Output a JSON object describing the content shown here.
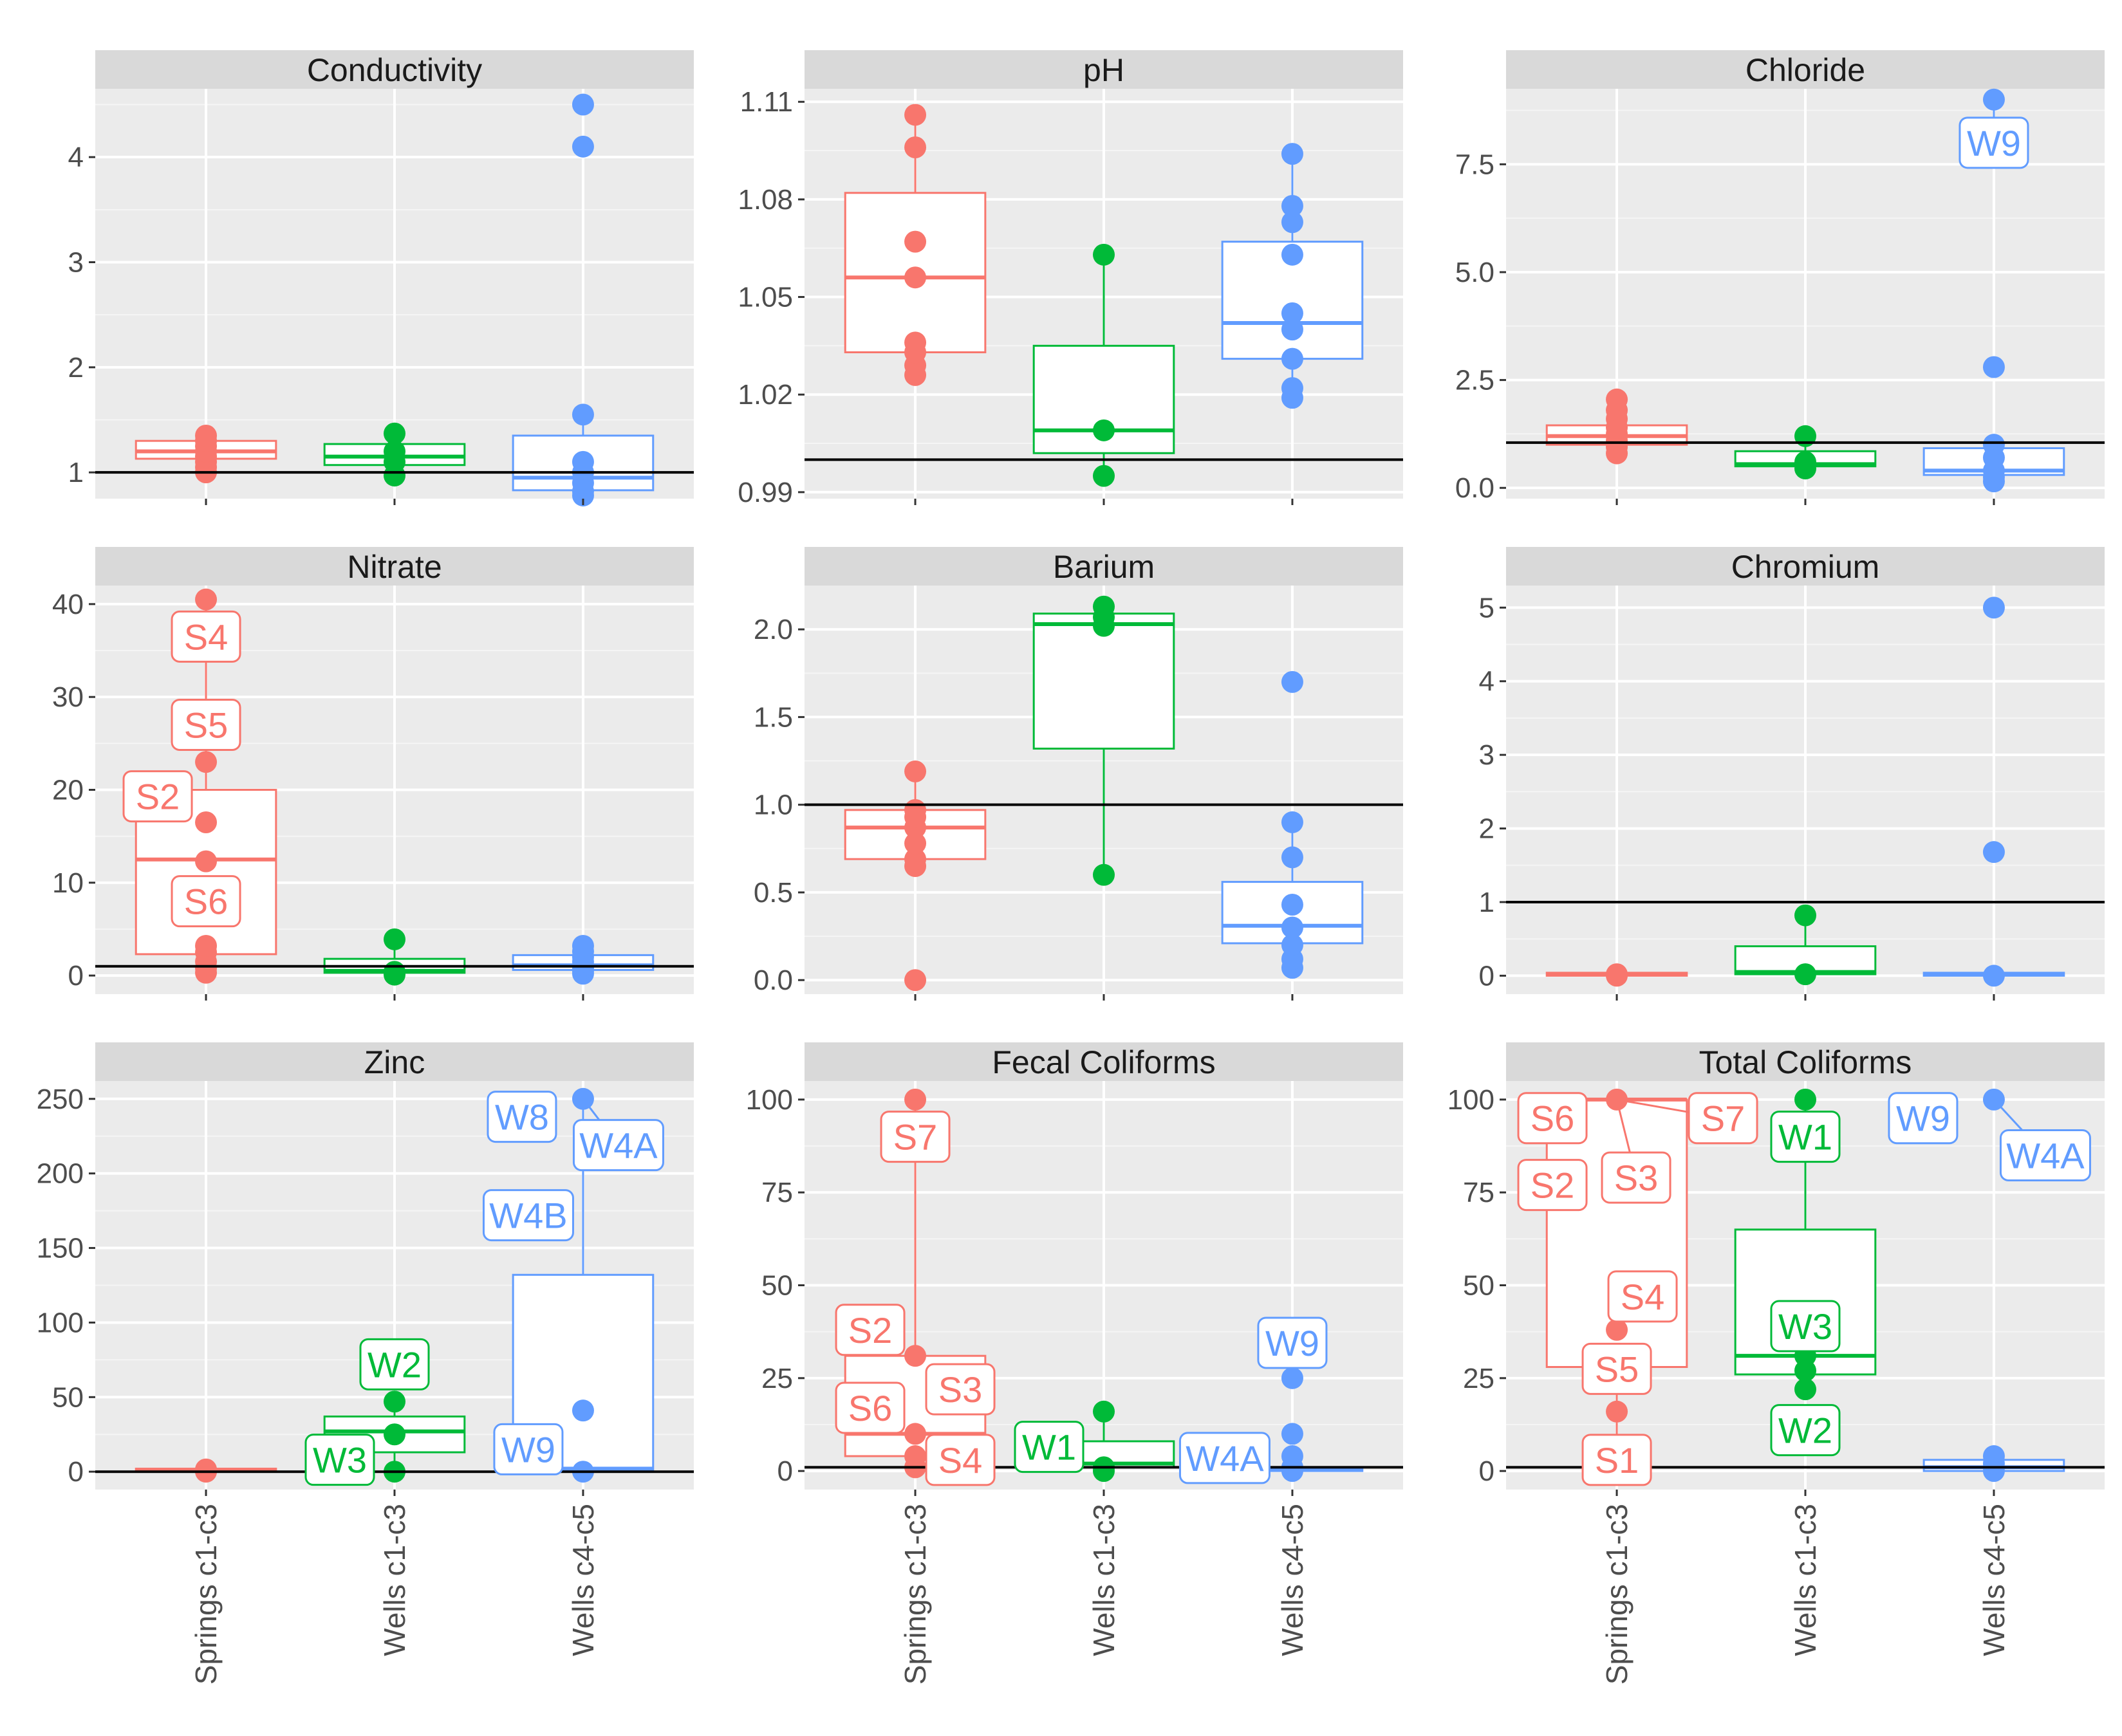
{
  "colors": {
    "springs": "#F8766D",
    "wells13": "#00BA38",
    "wells45": "#619CFF"
  },
  "groups": [
    "Springs c1-c3",
    "Wells c1-c3",
    "Wells c4-c5"
  ],
  "chart_data": [
    {
      "type": "box",
      "title": "Conductivity",
      "ylim": [
        0.75,
        4.65
      ],
      "yticks": [
        1,
        2,
        3,
        4
      ],
      "ytick_labels": [
        "1",
        "2",
        "3",
        "4"
      ],
      "hline": 1,
      "boxes": [
        {
          "group": "Springs c1-c3",
          "q1": 1.13,
          "median": 1.2,
          "q3": 1.3,
          "lo": 1.0,
          "hi": 1.35,
          "points": [
            1.0,
            1.05,
            1.1,
            1.15,
            1.2,
            1.25,
            1.3,
            1.35
          ]
        },
        {
          "group": "Wells c1-c3",
          "q1": 1.07,
          "median": 1.15,
          "q3": 1.27,
          "lo": 0.97,
          "hi": 1.37,
          "points": [
            0.97,
            1.1,
            1.2,
            1.37
          ]
        },
        {
          "group": "Wells c4-c5",
          "q1": 0.83,
          "median": 0.95,
          "q3": 1.35,
          "lo": 0.78,
          "hi": 1.55,
          "points": [
            0.78,
            0.82,
            0.9,
            1.0,
            1.1,
            1.55,
            4.1,
            4.5
          ]
        }
      ],
      "labels": []
    },
    {
      "type": "box",
      "title": "pH",
      "ylim": [
        0.988,
        1.114
      ],
      "yticks": [
        0.99,
        1.02,
        1.05,
        1.08,
        1.11
      ],
      "ytick_labels": [
        "0.99",
        "1.02",
        "1.05",
        "1.08",
        "1.11"
      ],
      "hline": 1.0,
      "boxes": [
        {
          "group": "Springs c1-c3",
          "q1": 1.033,
          "median": 1.056,
          "q3": 1.082,
          "lo": 1.026,
          "hi": 1.106,
          "points": [
            1.026,
            1.029,
            1.033,
            1.036,
            1.056,
            1.067,
            1.096,
            1.106
          ]
        },
        {
          "group": "Wells c1-c3",
          "q1": 1.002,
          "median": 1.009,
          "q3": 1.035,
          "lo": 0.995,
          "hi": 1.063,
          "points": [
            0.995,
            1.009,
            1.063
          ]
        },
        {
          "group": "Wells c4-c5",
          "q1": 1.031,
          "median": 1.042,
          "q3": 1.067,
          "lo": 1.019,
          "hi": 1.094,
          "points": [
            1.019,
            1.022,
            1.031,
            1.04,
            1.045,
            1.063,
            1.073,
            1.078,
            1.094
          ]
        }
      ],
      "labels": []
    },
    {
      "type": "box",
      "title": "Chloride",
      "ylim": [
        -0.25,
        9.25
      ],
      "yticks": [
        0,
        2.5,
        5,
        7.5
      ],
      "ytick_labels": [
        "0.0",
        "2.5",
        "5.0",
        "7.5"
      ],
      "hline": 1.05,
      "boxes": [
        {
          "group": "Springs c1-c3",
          "q1": 1.0,
          "median": 1.2,
          "q3": 1.45,
          "lo": 0.8,
          "hi": 2.05,
          "points": [
            0.8,
            0.95,
            1.1,
            1.25,
            1.4,
            1.6,
            1.8,
            2.05
          ]
        },
        {
          "group": "Wells c1-c3",
          "q1": 0.5,
          "median": 0.55,
          "q3": 0.85,
          "lo": 0.45,
          "hi": 1.2,
          "points": [
            0.45,
            0.6,
            1.2
          ]
        },
        {
          "group": "Wells c4-c5",
          "q1": 0.3,
          "median": 0.4,
          "q3": 0.92,
          "lo": 0.15,
          "hi": 1.0,
          "points": [
            0.15,
            0.25,
            0.4,
            0.7,
            1.0,
            2.8,
            9.0
          ]
        }
      ],
      "labels": [
        {
          "text": "W9",
          "group": "Wells c4-c5",
          "y": 8.0,
          "dx": 0,
          "to_y": 9.0
        }
      ]
    },
    {
      "type": "box",
      "title": "Nitrate",
      "ylim": [
        -2,
        42
      ],
      "yticks": [
        0,
        10,
        20,
        30,
        40
      ],
      "ytick_labels": [
        "0",
        "10",
        "20",
        "30",
        "40"
      ],
      "hline": 1,
      "boxes": [
        {
          "group": "Springs c1-c3",
          "q1": 2.3,
          "median": 12.5,
          "q3": 20,
          "lo": 0.3,
          "hi": 40.5,
          "points": [
            0.3,
            0.8,
            1.5,
            2.5,
            3.2,
            12.3,
            16.5,
            23,
            40.5
          ]
        },
        {
          "group": "Wells c1-c3",
          "q1": 0.3,
          "median": 0.5,
          "q3": 1.8,
          "lo": 0.1,
          "hi": 3.9,
          "points": [
            0.1,
            0.4,
            3.9
          ]
        },
        {
          "group": "Wells c4-c5",
          "q1": 0.6,
          "median": 1.1,
          "q3": 2.2,
          "lo": 0.2,
          "hi": 3.2,
          "points": [
            0.2,
            0.5,
            0.8,
            1.1,
            1.5,
            2.0,
            2.6,
            3.2
          ]
        }
      ],
      "labels": [
        {
          "text": "S4",
          "group": "Springs c1-c3",
          "y": 36.5,
          "dx": 0
        },
        {
          "text": "S5",
          "group": "Springs c1-c3",
          "y": 27,
          "dx": 0
        },
        {
          "text": "S2",
          "group": "Springs c1-c3",
          "y": 19.3,
          "dx": -75
        },
        {
          "text": "S6",
          "group": "Springs c1-c3",
          "y": 8,
          "dx": 0
        }
      ]
    },
    {
      "type": "box",
      "title": "Barium",
      "ylim": [
        -0.08,
        2.25
      ],
      "yticks": [
        0,
        0.5,
        1,
        1.5,
        2
      ],
      "ytick_labels": [
        "0.0",
        "0.5",
        "1.0",
        "1.5",
        "2.0"
      ],
      "hline": 1,
      "boxes": [
        {
          "group": "Springs c1-c3",
          "q1": 0.69,
          "median": 0.87,
          "q3": 0.97,
          "lo": 0.65,
          "hi": 1.19,
          "points": [
            0.0,
            0.65,
            0.69,
            0.78,
            0.87,
            0.93,
            0.97,
            1.19
          ]
        },
        {
          "group": "Wells c1-c3",
          "q1": 1.32,
          "median": 2.03,
          "q3": 2.09,
          "lo": 0.6,
          "hi": 2.13,
          "points": [
            0.6,
            2.02,
            2.07,
            2.13
          ]
        },
        {
          "group": "Wells c4-c5",
          "q1": 0.21,
          "median": 0.31,
          "q3": 0.56,
          "lo": 0.07,
          "hi": 0.9,
          "points": [
            0.07,
            0.12,
            0.2,
            0.3,
            0.43,
            0.7,
            0.9,
            1.7
          ]
        }
      ],
      "labels": []
    },
    {
      "type": "box",
      "title": "Chromium",
      "ylim": [
        -0.25,
        5.3
      ],
      "yticks": [
        0,
        1,
        2,
        3,
        4,
        5
      ],
      "ytick_labels": [
        "0",
        "1",
        "2",
        "3",
        "4",
        "5"
      ],
      "hline": 1,
      "boxes": [
        {
          "group": "Springs c1-c3",
          "q1": 0.0,
          "median": 0.02,
          "q3": 0.04,
          "lo": 0.0,
          "hi": 0.04,
          "points": [
            0.0,
            0.02
          ]
        },
        {
          "group": "Wells c1-c3",
          "q1": 0.02,
          "median": 0.05,
          "q3": 0.4,
          "lo": 0.0,
          "hi": 0.82,
          "points": [
            0.02,
            0.82
          ]
        },
        {
          "group": "Wells c4-c5",
          "q1": 0.0,
          "median": 0.02,
          "q3": 0.04,
          "lo": 0.0,
          "hi": 0.04,
          "points": [
            0.0,
            1.68,
            5.0
          ]
        }
      ],
      "labels": []
    },
    {
      "type": "box",
      "title": "Zinc",
      "ylim": [
        -12,
        262
      ],
      "yticks": [
        0,
        50,
        100,
        150,
        200,
        250
      ],
      "ytick_labels": [
        "0",
        "50",
        "100",
        "150",
        "200",
        "250"
      ],
      "hline": 0,
      "boxes": [
        {
          "group": "Springs c1-c3",
          "q1": 0.5,
          "median": 1,
          "q3": 2,
          "lo": 0,
          "hi": 2,
          "points": [
            0,
            0.5,
            1,
            1.5
          ]
        },
        {
          "group": "Wells c1-c3",
          "q1": 13,
          "median": 27,
          "q3": 37,
          "lo": 0,
          "hi": 47,
          "points": [
            0,
            25,
            47
          ]
        },
        {
          "group": "Wells c4-c5",
          "q1": 1,
          "median": 2,
          "q3": 132,
          "lo": 0,
          "hi": 250,
          "points": [
            0,
            41,
            250
          ]
        }
      ],
      "labels": [
        {
          "text": "W8",
          "group": "Wells c4-c5",
          "y": 238,
          "dx": -95
        },
        {
          "text": "W4A",
          "group": "Wells c4-c5",
          "y": 219,
          "dx": 55,
          "to_y": 250
        },
        {
          "text": "W4B",
          "group": "Wells c4-c5",
          "y": 172,
          "dx": -85
        },
        {
          "text": "W9",
          "group": "Wells c4-c5",
          "y": 15,
          "dx": -85
        },
        {
          "text": "W2",
          "group": "Wells c1-c3",
          "y": 72,
          "dx": 0
        },
        {
          "text": "W3",
          "group": "Wells c1-c3",
          "y": 8,
          "dx": -85
        }
      ]
    },
    {
      "type": "box",
      "title": "Fecal Coliforms",
      "ylim": [
        -5,
        105
      ],
      "yticks": [
        0,
        25,
        50,
        75,
        100
      ],
      "ytick_labels": [
        "0",
        "25",
        "50",
        "75",
        "100"
      ],
      "hline": 1,
      "boxes": [
        {
          "group": "Springs c1-c3",
          "q1": 4,
          "median": 10,
          "q3": 31,
          "lo": 1,
          "hi": 100,
          "points": [
            1,
            4,
            10,
            31,
            100
          ]
        },
        {
          "group": "Wells c1-c3",
          "q1": 1,
          "median": 2,
          "q3": 8,
          "lo": 0,
          "hi": 16,
          "points": [
            0,
            1,
            16
          ]
        },
        {
          "group": "Wells c4-c5",
          "q1": 0,
          "median": 0.5,
          "q3": 1,
          "lo": 0,
          "hi": 1,
          "points": [
            0,
            1,
            4,
            10,
            25
          ]
        }
      ],
      "labels": [
        {
          "text": "S7",
          "group": "Springs c1-c3",
          "y": 90,
          "dx": 0
        },
        {
          "text": "S2",
          "group": "Springs c1-c3",
          "y": 38,
          "dx": -70
        },
        {
          "text": "S3",
          "group": "Springs c1-c3",
          "y": 22,
          "dx": 70
        },
        {
          "text": "S6",
          "group": "Springs c1-c3",
          "y": 17,
          "dx": -70
        },
        {
          "text": "S4",
          "group": "Springs c1-c3",
          "y": 3,
          "dx": 70
        },
        {
          "text": "W1",
          "group": "Wells c1-c3",
          "y": 6.5,
          "dx": -85
        },
        {
          "text": "W4A",
          "group": "Wells c4-c5",
          "y": 3.5,
          "dx": -105
        },
        {
          "text": "W9",
          "group": "Wells c4-c5",
          "y": 34.5,
          "dx": 0
        }
      ]
    },
    {
      "type": "box",
      "title": "Total Coliforms",
      "ylim": [
        -5,
        105
      ],
      "yticks": [
        0,
        25,
        50,
        75,
        100
      ],
      "ytick_labels": [
        "0",
        "25",
        "50",
        "75",
        "100"
      ],
      "hline": 1,
      "boxes": [
        {
          "group": "Springs c1-c3",
          "q1": 28,
          "median": 100,
          "q3": 100,
          "lo": 1,
          "hi": 100,
          "points": [
            1,
            16,
            38,
            100
          ]
        },
        {
          "group": "Wells c1-c3",
          "q1": 26,
          "median": 31,
          "q3": 65,
          "lo": 22,
          "hi": 100,
          "points": [
            22,
            27,
            31,
            100
          ]
        },
        {
          "group": "Wells c4-c5",
          "q1": 0,
          "median": 1,
          "q3": 3,
          "lo": 0,
          "hi": 5,
          "points": [
            0,
            2,
            4,
            100
          ]
        }
      ],
      "labels": [
        {
          "text": "S6",
          "group": "Springs c1-c3",
          "y": 95,
          "dx": -100
        },
        {
          "text": "S7",
          "group": "Springs c1-c3",
          "y": 95,
          "dx": 165,
          "to_y": 100
        },
        {
          "text": "S2",
          "group": "Springs c1-c3",
          "y": 77,
          "dx": -100
        },
        {
          "text": "S3",
          "group": "Springs c1-c3",
          "y": 79,
          "dx": 30,
          "to_y": 100
        },
        {
          "text": "S4",
          "group": "Springs c1-c3",
          "y": 47,
          "dx": 40
        },
        {
          "text": "S5",
          "group": "Springs c1-c3",
          "y": 27.5,
          "dx": 0
        },
        {
          "text": "S1",
          "group": "Springs c1-c3",
          "y": 3,
          "dx": 0
        },
        {
          "text": "W1",
          "group": "Wells c1-c3",
          "y": 90,
          "dx": 0
        },
        {
          "text": "W3",
          "group": "Wells c1-c3",
          "y": 39,
          "dx": 0
        },
        {
          "text": "W2",
          "group": "Wells c1-c3",
          "y": 11,
          "dx": 0
        },
        {
          "text": "W9",
          "group": "Wells c4-c5",
          "y": 95,
          "dx": -110
        },
        {
          "text": "W4A",
          "group": "Wells c4-c5",
          "y": 85,
          "dx": 80,
          "to_y": 100
        }
      ]
    }
  ]
}
